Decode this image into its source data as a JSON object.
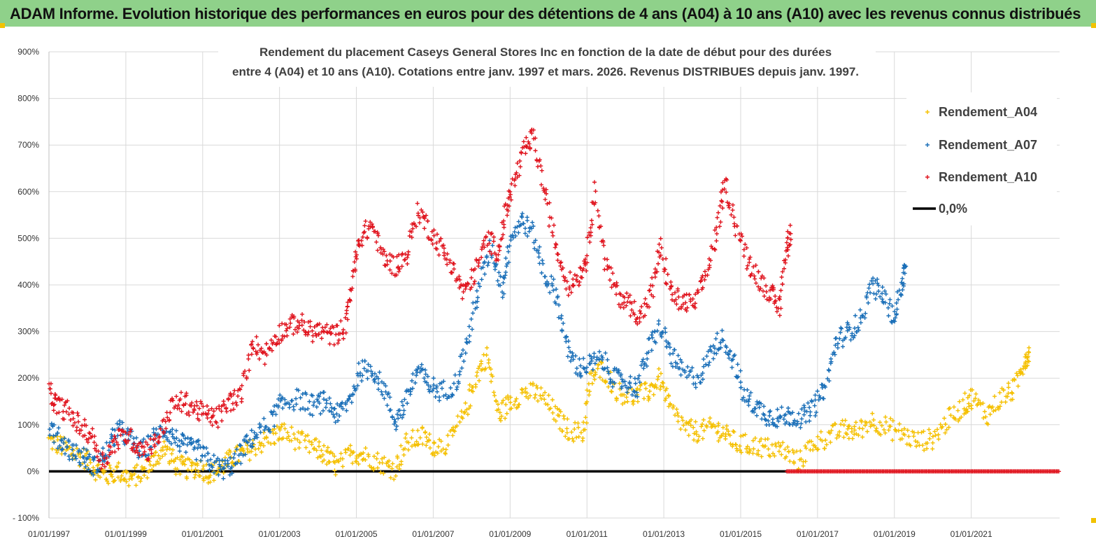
{
  "banner": {
    "title": "ADAM Informe. Evolution historique des performances en euros pour des détentions de 4 ans (A04) à 10 ans (A10) avec les revenus connus distribués",
    "color": "#8fd18a"
  },
  "chart_data": {
    "type": "scatter",
    "title_line1": "Rendement du placement Caseys General Stores Inc en fonction de la date de début pour des durées",
    "title_line2": "entre 4 (A04) et 10 ans (A10).  Cotations entre janv. 1997 et mars. 2026. Revenus DISTRIBUES depuis janv. 1997.",
    "ylim": [
      -100,
      900
    ],
    "y_ticks": [
      -100,
      0,
      100,
      200,
      300,
      400,
      500,
      600,
      700,
      800,
      900
    ],
    "y_tick_labels": [
      "- 100%",
      "0%",
      "100%",
      "200%",
      "300%",
      "400%",
      "500%",
      "600%",
      "700%",
      "800%",
      "900%"
    ],
    "xlim": [
      1997.0,
      2023.3
    ],
    "x_ticks": [
      1997,
      1999,
      2001,
      2003,
      2005,
      2007,
      2009,
      2011,
      2013,
      2015,
      2017,
      2019,
      2021
    ],
    "x_tick_labels": [
      "01/01/1997",
      "01/01/1999",
      "01/01/2001",
      "01/01/2003",
      "01/01/2005",
      "01/01/2007",
      "01/01/2009",
      "01/01/2011",
      "01/01/2013",
      "01/01/2015",
      "01/01/2017",
      "01/01/2019",
      "01/01/2021"
    ],
    "grid": true,
    "legend_position": "right",
    "series": [
      {
        "name": "Rendement_A04",
        "color": "#f5c000",
        "marker": "plus",
        "points": [
          [
            1997.0,
            65
          ],
          [
            1997.3,
            55
          ],
          [
            1997.6,
            40
          ],
          [
            1997.9,
            30
          ],
          [
            1998.2,
            5
          ],
          [
            1998.5,
            -10
          ],
          [
            1998.8,
            0
          ],
          [
            1999.1,
            -15
          ],
          [
            1999.4,
            -5
          ],
          [
            1999.7,
            20
          ],
          [
            2000.0,
            50
          ],
          [
            2000.3,
            15
          ],
          [
            2000.6,
            5
          ],
          [
            2000.9,
            10
          ],
          [
            2001.2,
            -5
          ],
          [
            2001.5,
            10
          ],
          [
            2001.8,
            30
          ],
          [
            2002.1,
            40
          ],
          [
            2002.4,
            55
          ],
          [
            2002.8,
            75
          ],
          [
            2003.1,
            85
          ],
          [
            2003.5,
            65
          ],
          [
            2003.9,
            50
          ],
          [
            2004.2,
            35
          ],
          [
            2004.5,
            10
          ],
          [
            2004.9,
            40
          ],
          [
            2005.2,
            35
          ],
          [
            2005.6,
            20
          ],
          [
            2006.0,
            5
          ],
          [
            2006.3,
            60
          ],
          [
            2006.7,
            75
          ],
          [
            2007.0,
            55
          ],
          [
            2007.4,
            60
          ],
          [
            2007.8,
            120
          ],
          [
            2008.1,
            200
          ],
          [
            2008.4,
            250
          ],
          [
            2008.7,
            120
          ],
          [
            2009.0,
            150
          ],
          [
            2009.4,
            170
          ],
          [
            2009.8,
            165
          ],
          [
            2010.2,
            120
          ],
          [
            2010.5,
            90
          ],
          [
            2010.9,
            80
          ],
          [
            2011.1,
            200
          ],
          [
            2011.4,
            220
          ],
          [
            2011.8,
            170
          ],
          [
            2012.2,
            160
          ],
          [
            2012.6,
            170
          ],
          [
            2012.9,
            200
          ],
          [
            2013.2,
            130
          ],
          [
            2013.6,
            90
          ],
          [
            2013.9,
            85
          ],
          [
            2014.3,
            95
          ],
          [
            2014.6,
            80
          ],
          [
            2014.9,
            60
          ],
          [
            2015.3,
            55
          ],
          [
            2015.7,
            50
          ],
          [
            2016.1,
            45
          ],
          [
            2016.5,
            20
          ],
          [
            2016.9,
            60
          ],
          [
            2017.3,
            75
          ],
          [
            2017.7,
            90
          ],
          [
            2018.0,
            85
          ],
          [
            2018.4,
            110
          ],
          [
            2018.8,
            95
          ],
          [
            2019.2,
            80
          ],
          [
            2019.6,
            65
          ],
          [
            2020.0,
            70
          ],
          [
            2020.4,
            110
          ],
          [
            2020.8,
            140
          ],
          [
            2021.0,
            160
          ],
          [
            2021.4,
            120
          ],
          [
            2021.8,
            160
          ],
          [
            2022.1,
            175
          ],
          [
            2022.4,
            240
          ],
          [
            2022.5,
            255
          ]
        ]
      },
      {
        "name": "Rendement_A07",
        "color": "#1a6fb8",
        "marker": "plus",
        "points": [
          [
            1997.0,
            95
          ],
          [
            1997.3,
            65
          ],
          [
            1997.6,
            45
          ],
          [
            1997.9,
            30
          ],
          [
            1998.2,
            10
          ],
          [
            1998.5,
            40
          ],
          [
            1998.8,
            90
          ],
          [
            1999.1,
            70
          ],
          [
            1999.4,
            40
          ],
          [
            1999.7,
            70
          ],
          [
            2000.0,
            90
          ],
          [
            2000.3,
            70
          ],
          [
            2000.6,
            50
          ],
          [
            2000.9,
            45
          ],
          [
            2001.2,
            20
          ],
          [
            2001.5,
            5
          ],
          [
            2001.8,
            15
          ],
          [
            2002.1,
            55
          ],
          [
            2002.4,
            80
          ],
          [
            2002.8,
            110
          ],
          [
            2003.1,
            150
          ],
          [
            2003.5,
            155
          ],
          [
            2003.9,
            140
          ],
          [
            2004.2,
            150
          ],
          [
            2004.5,
            120
          ],
          [
            2004.8,
            150
          ],
          [
            2005.1,
            215
          ],
          [
            2005.4,
            220
          ],
          [
            2005.7,
            180
          ],
          [
            2006.0,
            105
          ],
          [
            2006.3,
            150
          ],
          [
            2006.6,
            220
          ],
          [
            2006.9,
            185
          ],
          [
            2007.2,
            170
          ],
          [
            2007.6,
            190
          ],
          [
            2007.9,
            280
          ],
          [
            2008.2,
            400
          ],
          [
            2008.5,
            480
          ],
          [
            2008.8,
            390
          ],
          [
            2009.0,
            500
          ],
          [
            2009.3,
            540
          ],
          [
            2009.6,
            510
          ],
          [
            2009.9,
            420
          ],
          [
            2010.2,
            380
          ],
          [
            2010.5,
            260
          ],
          [
            2010.8,
            220
          ],
          [
            2011.1,
            230
          ],
          [
            2011.4,
            240
          ],
          [
            2011.7,
            200
          ],
          [
            2012.0,
            190
          ],
          [
            2012.3,
            180
          ],
          [
            2012.6,
            260
          ],
          [
            2012.9,
            310
          ],
          [
            2013.2,
            250
          ],
          [
            2013.5,
            210
          ],
          [
            2013.9,
            200
          ],
          [
            2014.2,
            250
          ],
          [
            2014.5,
            290
          ],
          [
            2014.8,
            240
          ],
          [
            2015.1,
            160
          ],
          [
            2015.4,
            140
          ],
          [
            2015.7,
            120
          ],
          [
            2016.0,
            115
          ],
          [
            2016.3,
            120
          ],
          [
            2016.6,
            115
          ],
          [
            2016.9,
            135
          ],
          [
            2017.2,
            180
          ],
          [
            2017.5,
            280
          ],
          [
            2017.8,
            300
          ],
          [
            2018.1,
            320
          ],
          [
            2018.4,
            400
          ],
          [
            2018.7,
            380
          ],
          [
            2019.0,
            330
          ],
          [
            2019.2,
            400
          ],
          [
            2019.3,
            440
          ]
        ]
      },
      {
        "name": "Rendement_A10",
        "color": "#e0141e",
        "marker": "plus",
        "points": [
          [
            1997.0,
            170
          ],
          [
            1997.2,
            140
          ],
          [
            1997.5,
            130
          ],
          [
            1997.8,
            95
          ],
          [
            1998.1,
            80
          ],
          [
            1998.4,
            20
          ],
          [
            1998.7,
            60
          ],
          [
            1999.0,
            80
          ],
          [
            1999.3,
            55
          ],
          [
            1999.6,
            45
          ],
          [
            1999.9,
            80
          ],
          [
            2000.2,
            140
          ],
          [
            2000.5,
            150
          ],
          [
            2000.8,
            135
          ],
          [
            2001.1,
            120
          ],
          [
            2001.4,
            115
          ],
          [
            2001.7,
            150
          ],
          [
            2002.0,
            160
          ],
          [
            2002.3,
            280
          ],
          [
            2002.6,
            250
          ],
          [
            2002.9,
            290
          ],
          [
            2003.2,
            310
          ],
          [
            2003.5,
            320
          ],
          [
            2003.8,
            300
          ],
          [
            2004.1,
            300
          ],
          [
            2004.4,
            290
          ],
          [
            2004.7,
            310
          ],
          [
            2004.9,
            410
          ],
          [
            2005.1,
            500
          ],
          [
            2005.4,
            530
          ],
          [
            2005.7,
            460
          ],
          [
            2006.0,
            440
          ],
          [
            2006.3,
            460
          ],
          [
            2006.6,
            560
          ],
          [
            2006.9,
            520
          ],
          [
            2007.2,
            480
          ],
          [
            2007.5,
            440
          ],
          [
            2007.8,
            380
          ],
          [
            2008.1,
            430
          ],
          [
            2008.4,
            500
          ],
          [
            2008.7,
            470
          ],
          [
            2008.9,
            560
          ],
          [
            2009.1,
            620
          ],
          [
            2009.4,
            690
          ],
          [
            2009.6,
            720
          ],
          [
            2009.9,
            600
          ],
          [
            2010.2,
            480
          ],
          [
            2010.5,
            400
          ],
          [
            2010.8,
            420
          ],
          [
            2011.0,
            460
          ],
          [
            2011.2,
            600
          ],
          [
            2011.5,
            440
          ],
          [
            2011.8,
            380
          ],
          [
            2012.1,
            360
          ],
          [
            2012.4,
            330
          ],
          [
            2012.7,
            390
          ],
          [
            2012.9,
            480
          ],
          [
            2013.2,
            380
          ],
          [
            2013.5,
            360
          ],
          [
            2013.8,
            360
          ],
          [
            2014.1,
            420
          ],
          [
            2014.4,
            520
          ],
          [
            2014.6,
            620
          ],
          [
            2014.9,
            520
          ],
          [
            2015.2,
            450
          ],
          [
            2015.5,
            410
          ],
          [
            2015.8,
            380
          ],
          [
            2016.0,
            350
          ],
          [
            2016.2,
            480
          ],
          [
            2016.3,
            510
          ]
        ]
      },
      {
        "name": "0,0%",
        "color": "#000000",
        "marker": "line",
        "points": [
          [
            1997.0,
            0
          ],
          [
            2016.2,
            0
          ]
        ]
      }
    ],
    "zero_markers": {
      "color": "#e0141e",
      "x_start": 2016.2,
      "x_end": 2023.3,
      "value": 0
    }
  }
}
